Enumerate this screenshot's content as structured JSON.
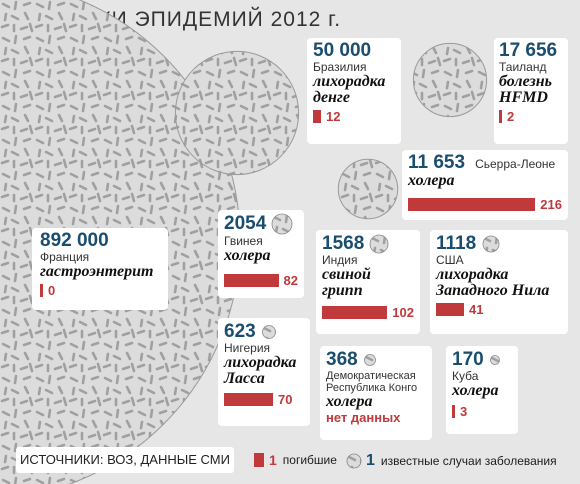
{
  "title": "ВСПЫШКИ ЭПИДЕМИЙ 2012 г.",
  "chart_data": {
    "type": "bubble",
    "size_encodes": "известные случаи заболевания",
    "bar_encodes": "погибшие",
    "series": [
      {
        "cases": 892000,
        "cases_label": "892 000",
        "country": "Франция",
        "disease": "гастроэнтерит",
        "deaths": 0,
        "deaths_label": "0"
      },
      {
        "cases": 50000,
        "cases_label": "50 000",
        "country": "Бразилия",
        "disease": "лихорадка денге",
        "deaths": 12,
        "deaths_label": "12"
      },
      {
        "cases": 17656,
        "cases_label": "17 656",
        "country": "Таиланд",
        "disease": "болезнь HFMD",
        "deaths": 2,
        "deaths_label": "2"
      },
      {
        "cases": 11653,
        "cases_label": "11 653",
        "country": "Сьерра-Леоне",
        "disease": "холера",
        "deaths": 216,
        "deaths_label": "216"
      },
      {
        "cases": 2054,
        "cases_label": "2054",
        "country": "Гвинея",
        "disease": "холера",
        "deaths": 82,
        "deaths_label": "82"
      },
      {
        "cases": 1568,
        "cases_label": "1568",
        "country": "Индия",
        "disease": "свиной грипп",
        "deaths": 102,
        "deaths_label": "102"
      },
      {
        "cases": 1118,
        "cases_label": "1118",
        "country": "США",
        "disease": "лихорадка Западного Нила",
        "deaths": 41,
        "deaths_label": "41"
      },
      {
        "cases": 623,
        "cases_label": "623",
        "country": "Нигерия",
        "disease": "лихорадка Ласса",
        "deaths": 70,
        "deaths_label": "70"
      },
      {
        "cases": 368,
        "cases_label": "368",
        "country": "Демократическая Республика Конго",
        "disease": "холера",
        "deaths": null,
        "deaths_label": "нет данных"
      },
      {
        "cases": 170,
        "cases_label": "170",
        "country": "Куба",
        "disease": "холера",
        "deaths": 3,
        "deaths_label": "3"
      }
    ]
  },
  "footer": {
    "sources": "ИСТОЧНИКИ: ВОЗ, ДАННЫЕ СМИ",
    "legend_deaths_num": "1",
    "legend_deaths_label": "погибшие",
    "legend_cases_num": "1",
    "legend_cases_label": "известные случаи заболевания"
  },
  "colors": {
    "accent": "#c0393b",
    "number": "#1a4d6e",
    "background": "#e6e6e6",
    "circle_fill": "#dcdcdc",
    "germ": "#a0a0a0"
  }
}
